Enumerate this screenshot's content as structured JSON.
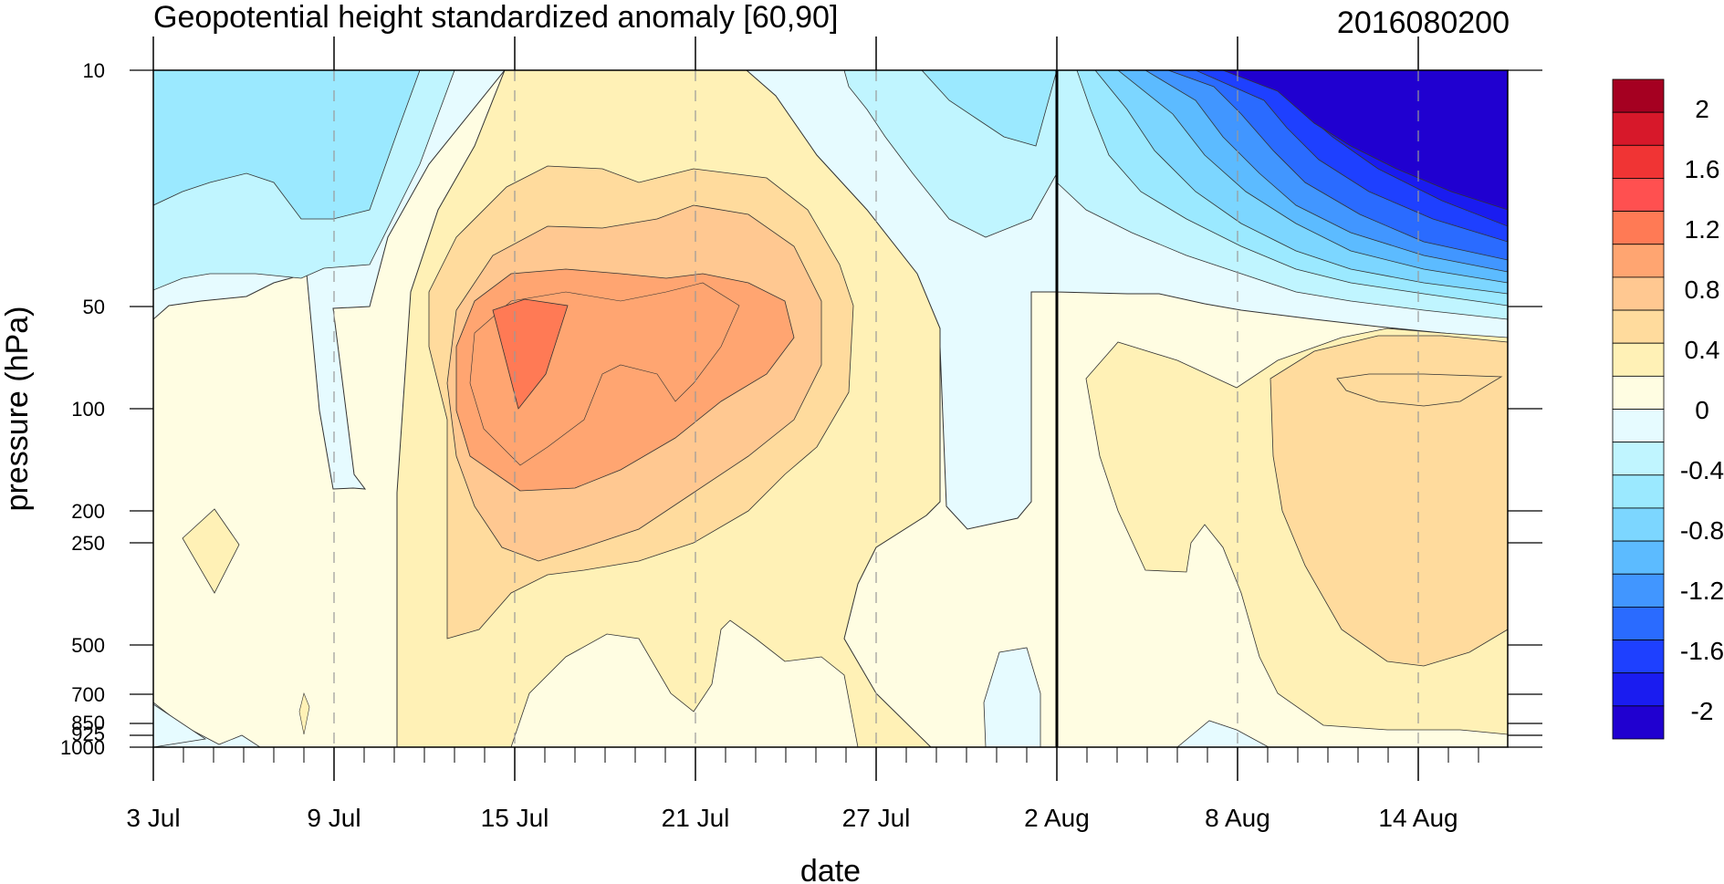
{
  "chart_data": {
    "type": "contour",
    "title": "Geopotential height standardized anomaly [60,90]",
    "subtitle": "2016080200",
    "xlabel": "date",
    "ylabel": "pressure (hPa)",
    "x_ticks": [
      "3 Jul",
      "9 Jul",
      "15 Jul",
      "21 Jul",
      "27 Jul",
      "2 Aug",
      "8 Aug",
      "14 Aug"
    ],
    "y_ticks": [
      "10",
      "50",
      "100",
      "200",
      "250",
      "500",
      "700",
      "850",
      "925",
      "1000"
    ],
    "y_scale": "log",
    "ylim": [
      1000,
      10
    ],
    "xlim": [
      "3 Jul",
      "17 Aug"
    ],
    "forecast_start": "2 Aug",
    "colorbar": {
      "labels": [
        "2",
        "1.6",
        "1.2",
        "0.8",
        "0.4",
        "0",
        "-0.4",
        "-0.8",
        "-1.2",
        "-1.6",
        "-2"
      ],
      "colors": [
        "#a50021",
        "#d7182a",
        "#f03434",
        "#ff5050",
        "#ff7a55",
        "#ffa571",
        "#ffc891",
        "#ffdb9d",
        "#fff1b6",
        "#fffde2",
        "#e6fbff",
        "#c0f5ff",
        "#9be9ff",
        "#7cd6ff",
        "#5cbbff",
        "#4196ff",
        "#2a6bff",
        "#1e40ff",
        "#1a1cf0",
        "#2000d0"
      ]
    }
  }
}
